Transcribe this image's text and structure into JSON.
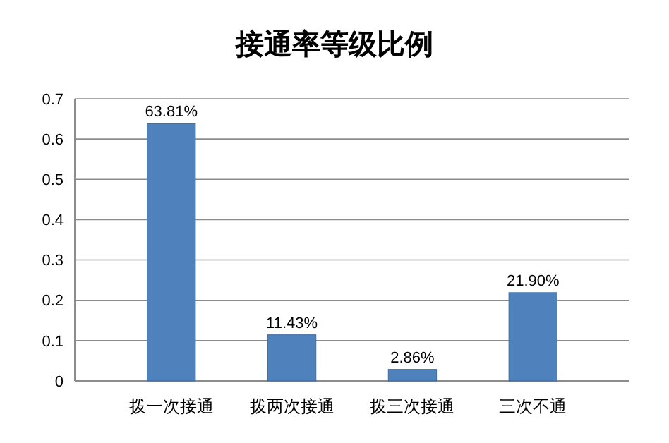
{
  "chart_data": {
    "type": "bar",
    "title": "接通率等级比例",
    "categories": [
      "拨一次接通",
      "拨两次接通",
      "拨三次接通",
      "三次不通"
    ],
    "values": [
      0.6381,
      0.1143,
      0.0286,
      0.219
    ],
    "value_labels": [
      "63.81%",
      "11.43%",
      "2.86%",
      "21.90%"
    ],
    "color": "#4f81bd",
    "ylim": [
      0,
      0.7
    ],
    "yticks": [
      0,
      0.1,
      0.2,
      0.3,
      0.4,
      0.5,
      0.6,
      0.7
    ],
    "grid": "y"
  }
}
